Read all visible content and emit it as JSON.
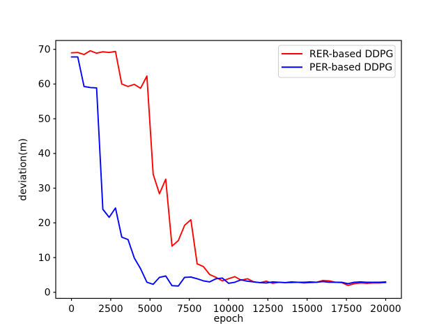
{
  "figure": {
    "background": "#ffffff",
    "spine_color": "#000000",
    "text_color": "#000000",
    "legend_border_color": "#cccccc",
    "legend_background": "#ffffff"
  },
  "chart_data": {
    "type": "line",
    "title": "",
    "xlabel": "epoch",
    "ylabel": "deviation(m)",
    "grid": false,
    "legend_position": "upper right",
    "xlim": [
      -1000,
      21000
    ],
    "ylim": [
      -1.75,
      72.55
    ],
    "xticks": [
      0,
      2500,
      5000,
      7500,
      10000,
      12500,
      15000,
      17500,
      20000
    ],
    "yticks": [
      0,
      10,
      20,
      30,
      40,
      50,
      60,
      70
    ],
    "x": [
      0,
      400,
      800,
      1200,
      1600,
      2000,
      2400,
      2800,
      3200,
      3600,
      4000,
      4400,
      4800,
      5200,
      5600,
      6000,
      6400,
      6800,
      7200,
      7600,
      8000,
      8400,
      8800,
      9200,
      9600,
      10000,
      10400,
      10800,
      11200,
      11600,
      12000,
      12400,
      12800,
      13200,
      13600,
      14000,
      14400,
      14800,
      15200,
      15600,
      16000,
      16400,
      16800,
      17200,
      17600,
      18000,
      18400,
      18800,
      19200,
      19600,
      20000
    ],
    "series": [
      {
        "name": "RER-based DDPG",
        "color": "#ff0000",
        "values": [
          69.0,
          69.1,
          68.5,
          69.6,
          68.9,
          69.3,
          69.1,
          69.4,
          60.0,
          59.3,
          59.9,
          58.8,
          62.3,
          34.0,
          28.4,
          32.6,
          13.3,
          14.9,
          19.3,
          20.9,
          8.2,
          7.4,
          5.1,
          4.3,
          3.3,
          3.9,
          4.5,
          3.5,
          3.9,
          3.0,
          2.8,
          3.2,
          2.6,
          2.9,
          2.8,
          2.8,
          2.9,
          2.7,
          2.8,
          2.9,
          3.4,
          3.3,
          2.9,
          2.8,
          2.0,
          2.5,
          2.7,
          2.6,
          2.7,
          2.7,
          2.8
        ]
      },
      {
        "name": "PER-based DDPG",
        "color": "#0000ff",
        "values": [
          67.8,
          67.8,
          59.3,
          59.0,
          58.9,
          23.9,
          21.6,
          24.3,
          15.9,
          15.2,
          9.9,
          6.8,
          2.9,
          2.3,
          4.3,
          4.7,
          1.9,
          1.8,
          4.3,
          4.4,
          3.9,
          3.3,
          3.0,
          3.9,
          4.1,
          2.6,
          2.9,
          3.6,
          3.2,
          3.0,
          2.8,
          2.7,
          3.0,
          2.9,
          2.8,
          3.0,
          2.9,
          2.9,
          3.0,
          2.9,
          3.1,
          2.9,
          2.9,
          2.9,
          2.5,
          2.9,
          3.0,
          2.9,
          2.9,
          2.9,
          3.0
        ]
      }
    ]
  }
}
